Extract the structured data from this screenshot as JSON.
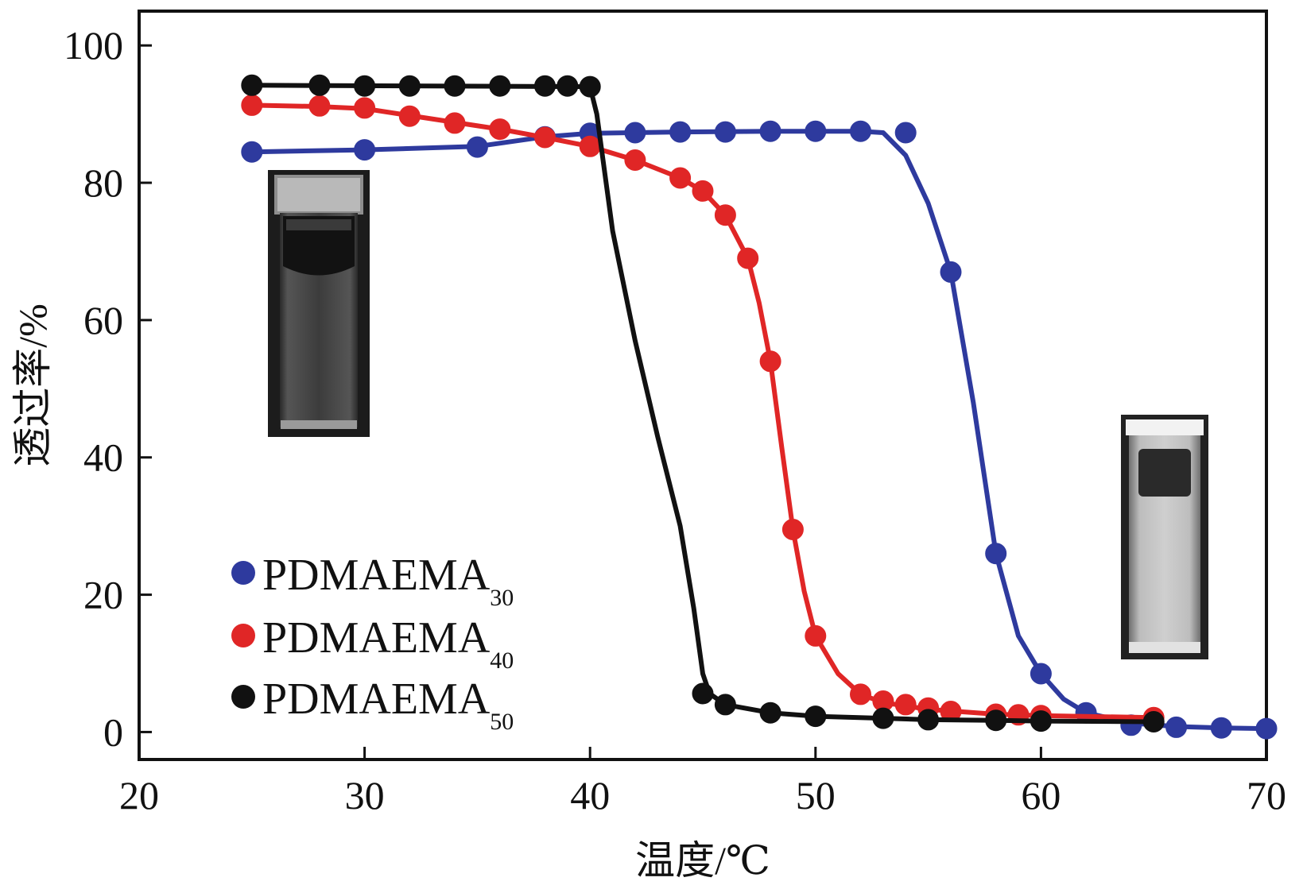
{
  "chart_data": {
    "type": "line",
    "title": "",
    "xlabel": "温度/℃",
    "ylabel": "透过率/%",
    "xlim": [
      20,
      70
    ],
    "ylim": [
      -4,
      105
    ],
    "xticks": [
      20,
      30,
      40,
      50,
      60,
      70
    ],
    "yticks": [
      0,
      20,
      40,
      60,
      80,
      100
    ],
    "grid": false,
    "legend_position": "bottom-left",
    "series": [
      {
        "name": "PDMAEMA",
        "subscript": "30",
        "color": "#2e3a9e",
        "points": [
          [
            25,
            84.5
          ],
          [
            30,
            84.8
          ],
          [
            35,
            85.2
          ],
          [
            38,
            86.7
          ],
          [
            40,
            87.2
          ],
          [
            42,
            87.3
          ],
          [
            44,
            87.4
          ],
          [
            46,
            87.4
          ],
          [
            48,
            87.5
          ],
          [
            50,
            87.5
          ],
          [
            52,
            87.5
          ],
          [
            54,
            87.3
          ],
          [
            56,
            67
          ],
          [
            58,
            26
          ],
          [
            60,
            8.5
          ],
          [
            62,
            2.8
          ],
          [
            64,
            1
          ],
          [
            66,
            0.7
          ],
          [
            68,
            0.6
          ],
          [
            70,
            0.5
          ]
        ],
        "curve": [
          [
            25,
            84.5
          ],
          [
            30,
            84.8
          ],
          [
            35,
            85.3
          ],
          [
            38,
            86.7
          ],
          [
            40,
            87.2
          ],
          [
            44,
            87.4
          ],
          [
            48,
            87.5
          ],
          [
            52,
            87.5
          ],
          [
            53,
            87.3
          ],
          [
            54,
            84
          ],
          [
            55,
            77
          ],
          [
            56,
            67
          ],
          [
            57,
            48
          ],
          [
            58,
            26
          ],
          [
            59,
            14
          ],
          [
            60,
            8.5
          ],
          [
            61,
            4.8
          ],
          [
            62,
            2.8
          ],
          [
            64,
            1.3
          ],
          [
            66,
            0.8
          ],
          [
            68,
            0.6
          ],
          [
            70,
            0.5
          ]
        ]
      },
      {
        "name": "PDMAEMA",
        "subscript": "40",
        "color": "#e02626",
        "points": [
          [
            25,
            91.3
          ],
          [
            28,
            91.2
          ],
          [
            30,
            90.9
          ],
          [
            32,
            89.7
          ],
          [
            34,
            88.7
          ],
          [
            36,
            87.8
          ],
          [
            38,
            86.6
          ],
          [
            40,
            85.3
          ],
          [
            42,
            83.3
          ],
          [
            44,
            80.7
          ],
          [
            45,
            78.8
          ],
          [
            46,
            75.3
          ],
          [
            47,
            69
          ],
          [
            48,
            54
          ],
          [
            49,
            29.5
          ],
          [
            50,
            14
          ],
          [
            52,
            5.5
          ],
          [
            53,
            4.5
          ],
          [
            54,
            4
          ],
          [
            55,
            3.5
          ],
          [
            56,
            3
          ],
          [
            58,
            2.6
          ],
          [
            59,
            2.5
          ],
          [
            60,
            2.4
          ],
          [
            65,
            2.1
          ]
        ],
        "curve": [
          [
            25,
            91.3
          ],
          [
            28,
            91.1
          ],
          [
            30,
            90.8
          ],
          [
            32,
            89.8
          ],
          [
            34,
            88.8
          ],
          [
            36,
            87.8
          ],
          [
            38,
            86.6
          ],
          [
            40,
            85.3
          ],
          [
            42,
            83.3
          ],
          [
            44,
            80.7
          ],
          [
            45,
            78.8
          ],
          [
            46,
            75.3
          ],
          [
            47,
            69
          ],
          [
            47.5,
            62.5
          ],
          [
            48,
            54
          ],
          [
            48.5,
            41.5
          ],
          [
            49,
            29.5
          ],
          [
            49.5,
            20.5
          ],
          [
            50,
            14
          ],
          [
            51,
            8.5
          ],
          [
            52,
            5.5
          ],
          [
            53,
            4.3
          ],
          [
            55,
            3.3
          ],
          [
            58,
            2.6
          ],
          [
            60,
            2.4
          ],
          [
            65,
            2.1
          ]
        ]
      },
      {
        "name": "PDMAEMA",
        "subscript": "50",
        "color": "#111111",
        "points": [
          [
            25,
            94.2
          ],
          [
            28,
            94.2
          ],
          [
            30,
            94.1
          ],
          [
            32,
            94.1
          ],
          [
            34,
            94.1
          ],
          [
            36,
            94.1
          ],
          [
            38,
            94.1
          ],
          [
            39,
            94.1
          ],
          [
            40,
            94
          ],
          [
            45,
            5.6
          ],
          [
            46,
            4
          ],
          [
            48,
            2.8
          ],
          [
            50,
            2.3
          ],
          [
            53,
            2
          ],
          [
            55,
            1.8
          ],
          [
            58,
            1.7
          ],
          [
            60,
            1.6
          ],
          [
            65,
            1.5
          ]
        ],
        "curve": [
          [
            25,
            94.2
          ],
          [
            40,
            94
          ],
          [
            40.3,
            90
          ],
          [
            41,
            73
          ],
          [
            42,
            57
          ],
          [
            43,
            43
          ],
          [
            44,
            30
          ],
          [
            44.6,
            18
          ],
          [
            45,
            8.5
          ],
          [
            45.3,
            5.6
          ],
          [
            46,
            4
          ],
          [
            48,
            2.8
          ],
          [
            50,
            2.3
          ],
          [
            53,
            2
          ],
          [
            55,
            1.8
          ],
          [
            58,
            1.7
          ],
          [
            60,
            1.6
          ],
          [
            65,
            1.5
          ]
        ]
      }
    ]
  }
}
